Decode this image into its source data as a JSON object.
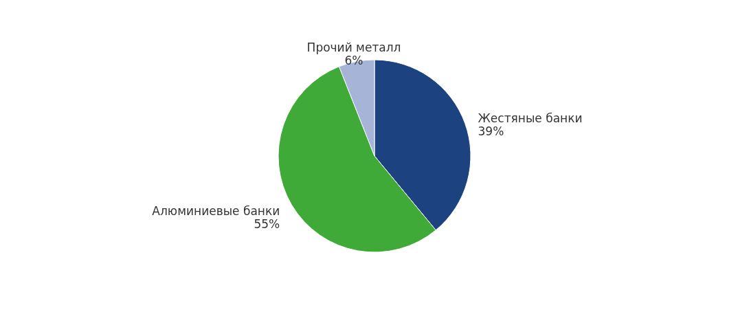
{
  "chart_data": {
    "type": "pie",
    "categories": [
      "Жестяные банки",
      "Алюминиевые банки",
      "Прочий металл"
    ],
    "values": [
      39,
      55,
      6
    ],
    "value_labels": [
      "39%",
      "55%",
      "6%"
    ],
    "colors": [
      "#1c4380",
      "#3faa38",
      "#a6b4d8"
    ],
    "legend": false
  }
}
